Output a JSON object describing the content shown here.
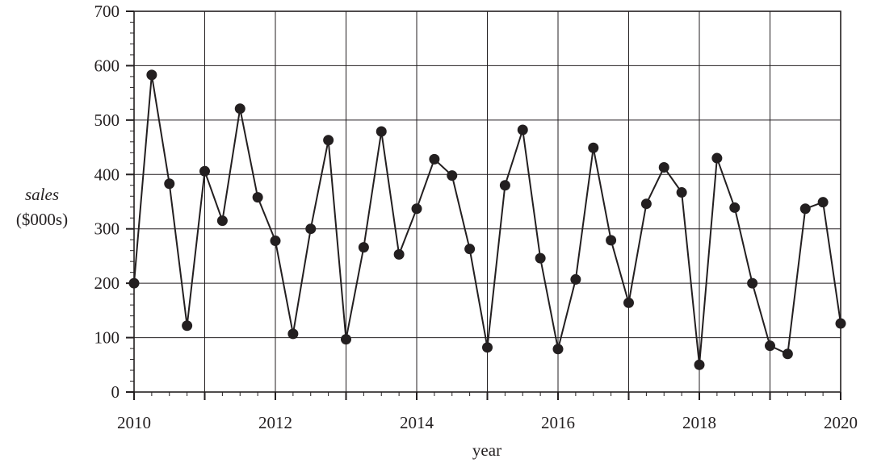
{
  "chart_data": {
    "type": "line",
    "xlabel": "year",
    "ylabel": "sales",
    "ylabel_unit": "($000s)",
    "xlim": [
      2010,
      2020
    ],
    "ylim": [
      0,
      700
    ],
    "x_ticks": [
      "2010",
      "2012",
      "2014",
      "2016",
      "2018",
      "2020"
    ],
    "y_ticks": [
      "0",
      "100",
      "200",
      "300",
      "400",
      "500",
      "600",
      "700"
    ],
    "grid": true,
    "series": [
      {
        "x": [
          2010.0,
          2010.25,
          2010.5,
          2010.75,
          2011.0,
          2011.25,
          2011.5,
          2011.75,
          2012.0,
          2012.25,
          2012.5,
          2012.75,
          2013.0,
          2013.25,
          2013.5,
          2013.75,
          2014.0,
          2014.25,
          2014.5,
          2014.75,
          2015.0,
          2015.25,
          2015.5,
          2015.75,
          2016.0,
          2016.25,
          2016.5,
          2016.75,
          2017.0,
          2017.25,
          2017.5,
          2017.75,
          2018.0,
          2018.25,
          2018.5,
          2018.75,
          2019.0,
          2019.25,
          2019.5,
          2019.75,
          2020.0
        ],
        "y": [
          200,
          583,
          383,
          122,
          406,
          315,
          521,
          358,
          278,
          107,
          300,
          463,
          97,
          266,
          479,
          253,
          337,
          428,
          398,
          263,
          82,
          380,
          482,
          246,
          79,
          207,
          449,
          279,
          164,
          346,
          413,
          367,
          50,
          430,
          339,
          200,
          85,
          70,
          337,
          349,
          126
        ]
      }
    ],
    "colors": {
      "line": "#231f20",
      "marker": "#231f20",
      "grid": "#231f20"
    }
  }
}
